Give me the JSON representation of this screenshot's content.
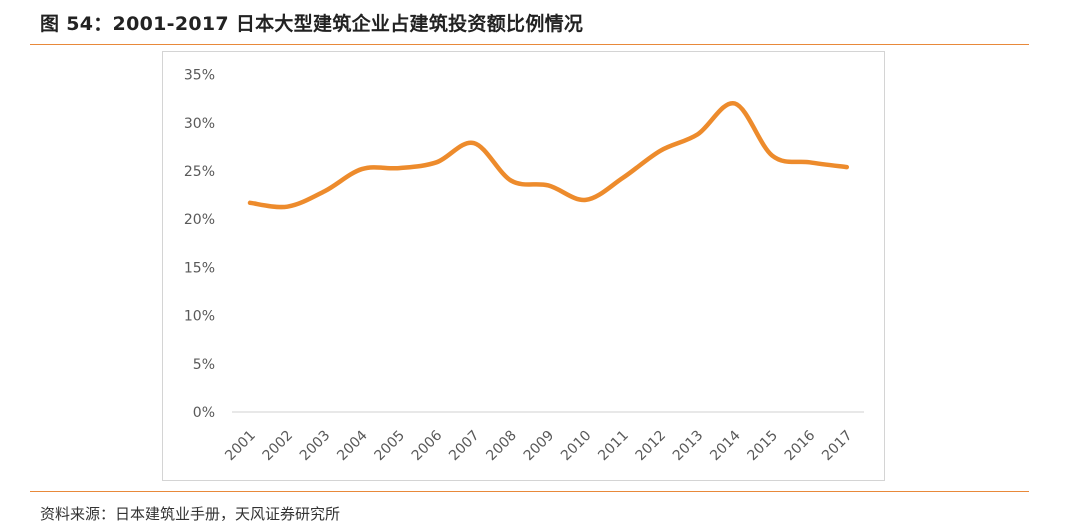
{
  "figure": {
    "title": "图 54：2001-2017 日本大型建筑企业占建筑投资额比例情况",
    "source": "资料来源：日本建筑业手册，天风证券研究所",
    "accent_color": "#e8893a"
  },
  "chart_data": {
    "type": "line",
    "title": "",
    "xlabel": "",
    "ylabel": "",
    "categories": [
      "2001",
      "2002",
      "2003",
      "2004",
      "2005",
      "2006",
      "2007",
      "2008",
      "2009",
      "2010",
      "2011",
      "2012",
      "2013",
      "2014",
      "2015",
      "2016",
      "2017"
    ],
    "series": [
      {
        "values": [
          21.7,
          21.3,
          22.9,
          25.2,
          25.3,
          25.9,
          27.9,
          24.0,
          23.5,
          22.0,
          24.3,
          27.1,
          28.8,
          32.0,
          26.6,
          25.9,
          25.4
        ],
        "color": "#ed8b2c",
        "smooth": true
      }
    ],
    "ylim": [
      0,
      35
    ],
    "yticks": [
      0,
      5,
      10,
      15,
      20,
      25,
      30,
      35
    ],
    "ytick_labels": [
      "0%",
      "5%",
      "10%",
      "15%",
      "20%",
      "25%",
      "30%",
      "35%"
    ],
    "y_unit": "%",
    "grid": false,
    "legend": "none"
  }
}
